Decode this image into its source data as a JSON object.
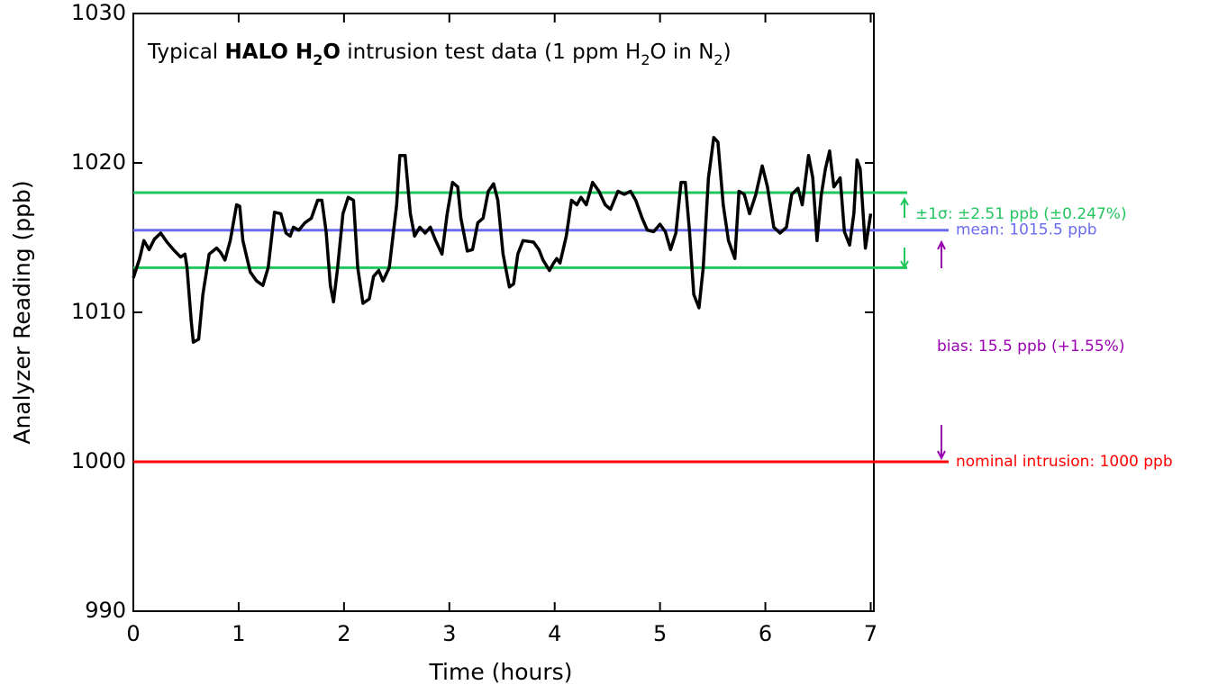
{
  "chart_data": {
    "type": "line",
    "title_runs": [
      {
        "text": "Typical "
      },
      {
        "text": "HALO H",
        "bold": true
      },
      {
        "text": "2",
        "bold": true,
        "sub": true
      },
      {
        "text": "O",
        "bold": true
      },
      {
        "text": " intrusion test data (1 ppm H"
      },
      {
        "text": "2",
        "sub": true
      },
      {
        "text": "O in N"
      },
      {
        "text": "2",
        "sub": true
      },
      {
        "text": ")"
      }
    ],
    "x_label": "Time (hours)",
    "y_label": "Analyzer Reading (ppb)",
    "xlim": [
      0,
      7.03
    ],
    "ylim": [
      990,
      1030
    ],
    "xticks": [
      0,
      1,
      2,
      3,
      4,
      5,
      6,
      7
    ],
    "yticks": [
      990,
      1000,
      1010,
      1020,
      1030
    ],
    "series": [
      {
        "color": "#000000",
        "x": [
          0,
          0.06,
          0.1,
          0.15,
          0.2,
          0.26,
          0.32,
          0.38,
          0.45,
          0.49,
          0.51,
          0.55,
          0.57,
          0.62,
          0.66,
          0.72,
          0.79,
          0.83,
          0.87,
          0.92,
          0.98,
          1.01,
          1.04,
          1.11,
          1.17,
          1.23,
          1.28,
          1.34,
          1.4,
          1.45,
          1.49,
          1.52,
          1.57,
          1.63,
          1.69,
          1.75,
          1.79,
          1.83,
          1.87,
          1.9,
          1.94,
          1.99,
          2.04,
          2.09,
          2.13,
          2.18,
          2.24,
          2.28,
          2.33,
          2.37,
          2.43,
          2.5,
          2.53,
          2.58,
          2.63,
          2.67,
          2.72,
          2.77,
          2.82,
          2.87,
          2.93,
          2.98,
          3.03,
          3.08,
          3.11,
          3.17,
          3.22,
          3.27,
          3.32,
          3.37,
          3.42,
          3.46,
          3.51,
          3.57,
          3.61,
          3.65,
          3.7,
          3.8,
          3.85,
          3.89,
          3.95,
          3.99,
          4.02,
          4.05,
          4.11,
          4.16,
          4.21,
          4.25,
          4.3,
          4.36,
          4.42,
          4.48,
          4.53,
          4.6,
          4.66,
          4.72,
          4.77,
          4.83,
          4.88,
          4.94,
          5.0,
          5.05,
          5.1,
          5.15,
          5.2,
          5.24,
          5.28,
          5.32,
          5.37,
          5.41,
          5.46,
          5.51,
          5.55,
          5.6,
          5.65,
          5.71,
          5.75,
          5.8,
          5.85,
          5.91,
          5.97,
          6.02,
          6.08,
          6.14,
          6.2,
          6.25,
          6.31,
          6.35,
          6.41,
          6.45,
          6.49,
          6.53,
          6.57,
          6.61,
          6.65,
          6.71,
          6.75,
          6.8,
          6.84,
          6.87,
          6.9,
          6.95,
          7.0
        ],
        "values": [
          1012.3,
          1013.6,
          1014.8,
          1014.2,
          1014.9,
          1015.3,
          1014.7,
          1014.2,
          1013.7,
          1013.9,
          1013.0,
          1009.4,
          1008.0,
          1008.2,
          1011.2,
          1013.9,
          1014.3,
          1014.0,
          1013.5,
          1014.8,
          1017.2,
          1017.1,
          1014.8,
          1012.7,
          1012.1,
          1011.8,
          1013.0,
          1016.7,
          1016.6,
          1015.3,
          1015.1,
          1015.7,
          1015.5,
          1016.0,
          1016.3,
          1017.5,
          1017.5,
          1015.4,
          1011.8,
          1010.7,
          1013.0,
          1016.6,
          1017.7,
          1017.5,
          1013.0,
          1010.6,
          1010.9,
          1012.4,
          1012.8,
          1012.1,
          1013.0,
          1017.2,
          1020.5,
          1020.5,
          1016.6,
          1015.1,
          1015.7,
          1015.3,
          1015.7,
          1014.8,
          1013.9,
          1016.6,
          1018.7,
          1018.4,
          1016.3,
          1014.1,
          1014.2,
          1016.0,
          1016.3,
          1018.1,
          1018.6,
          1017.5,
          1013.9,
          1011.7,
          1011.9,
          1013.9,
          1014.8,
          1014.7,
          1014.2,
          1013.5,
          1012.8,
          1013.3,
          1013.6,
          1013.3,
          1015.1,
          1017.5,
          1017.2,
          1017.7,
          1017.2,
          1018.7,
          1018.1,
          1017.2,
          1016.9,
          1018.1,
          1017.9,
          1018.1,
          1017.5,
          1016.3,
          1015.5,
          1015.4,
          1015.9,
          1015.4,
          1014.2,
          1015.3,
          1018.7,
          1018.7,
          1015.4,
          1011.2,
          1010.3,
          1013.0,
          1019.0,
          1021.7,
          1021.4,
          1017.2,
          1014.8,
          1013.6,
          1018.1,
          1017.9,
          1016.6,
          1017.9,
          1019.8,
          1018.4,
          1015.7,
          1015.3,
          1015.7,
          1017.9,
          1018.3,
          1017.2,
          1020.5,
          1019.0,
          1014.8,
          1017.8,
          1019.6,
          1020.8,
          1018.4,
          1019.0,
          1015.4,
          1014.5,
          1016.6,
          1020.2,
          1019.6,
          1014.3,
          1016.6
        ]
      }
    ],
    "reference_lines": [
      {
        "value": 1018.01,
        "color": "#22c55e"
      },
      {
        "value": 1012.99,
        "color": "#22c55e"
      },
      {
        "value": 1015.5,
        "color": "#6b6bef",
        "label": "mean: 1015.5 ppb"
      },
      {
        "value": 1000,
        "color": "#ff0000",
        "label": "nominal intrusion: 1000 ppb"
      }
    ],
    "annotations": [
      {
        "text": "±1σ: ±2.51 ppb (±0.247%)",
        "color": "#22c55e"
      },
      {
        "text": "bias: 15.5 ppb (+1.55%)",
        "color": "#9900b0"
      }
    ]
  }
}
